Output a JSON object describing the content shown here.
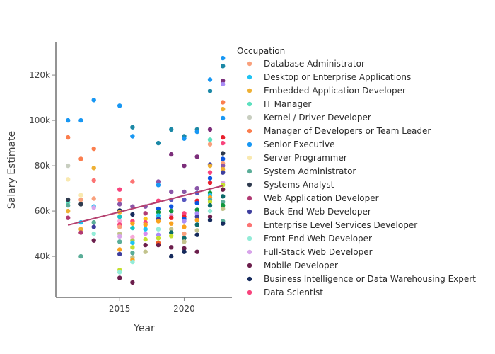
{
  "chart_data": {
    "type": "scatter",
    "title": "",
    "xlabel": "Year",
    "ylabel": "Salary Estimate",
    "xlim": [
      2010.06,
      2023.7
    ],
    "ylim": [
      21900,
      134400
    ],
    "x_ticks": [
      {
        "value": 2015,
        "label": "2015"
      },
      {
        "value": 2020,
        "label": "2020"
      }
    ],
    "y_ticks": [
      {
        "value": 40000,
        "label": "40k"
      },
      {
        "value": 60000,
        "label": "60k"
      },
      {
        "value": 80000,
        "label": "80k"
      },
      {
        "value": 100000,
        "label": "100k"
      },
      {
        "value": 120000,
        "label": "120k"
      }
    ],
    "grid": false,
    "legend": {
      "title": "Occupation",
      "placement": "right",
      "entries": [
        {
          "name": "Database Administrator",
          "color": "#f9a07c"
        },
        {
          "name": "Desktop or Enterprise Applications",
          "color": "#1fc3f3"
        },
        {
          "name": "Embedded Application Developer",
          "color": "#eeb034"
        },
        {
          "name": "IT Manager",
          "color": "#5de0bf"
        },
        {
          "name": "Kernel / Driver Developer",
          "color": "#c8cec0"
        },
        {
          "name": "Manager of Developers or Team Leader",
          "color": "#fb7e4e"
        },
        {
          "name": "Senior Executive",
          "color": "#1897f3"
        },
        {
          "name": "Server Programmer",
          "color": "#f9e9b0"
        },
        {
          "name": "System Administrator",
          "color": "#5aad98"
        },
        {
          "name": "Systems Analyst",
          "color": "#2e3a4e"
        },
        {
          "name": "Web Application Developer",
          "color": "#b13a73"
        },
        {
          "name": "Back-End Web Developer",
          "color": "#3e3e9e"
        },
        {
          "name": "Enterprise Level Services Developer",
          "color": "#fc7373"
        },
        {
          "name": "Front-End Web Developer",
          "color": "#93ecd8"
        },
        {
          "name": "Full-Stack Web Developer",
          "color": "#d8a4ea"
        },
        {
          "name": "Mobile Developer",
          "color": "#6b1e4c"
        },
        {
          "name": "Business Intelligence or Data Warehousing Expert",
          "color": "#152a5c"
        },
        {
          "name": "Data Scientist",
          "color": "#f8437c"
        }
      ]
    },
    "trendline": {
      "color": "#b5406f",
      "x": [
        2011,
        2023
      ],
      "y": [
        53800,
        71200
      ]
    },
    "points": [
      {
        "x": 2011,
        "y": 100000,
        "color": "#1897f3"
      },
      {
        "x": 2011,
        "y": 92500,
        "color": "#fb7e4e"
      },
      {
        "x": 2011,
        "y": 80000,
        "color": "#c8cec0"
      },
      {
        "x": 2011,
        "y": 74000,
        "color": "#f9e9b0"
      },
      {
        "x": 2011,
        "y": 63800,
        "color": "#5de0bf"
      },
      {
        "x": 2011,
        "y": 65000,
        "color": "#2e3a4e"
      },
      {
        "x": 2011,
        "y": 62500,
        "color": "#5aad98"
      },
      {
        "x": 2011,
        "y": 60000,
        "color": "#eeb034"
      },
      {
        "x": 2011,
        "y": 57000,
        "color": "#b13a73"
      },
      {
        "x": 2012,
        "y": 100000,
        "color": "#1897f3"
      },
      {
        "x": 2012,
        "y": 83000,
        "color": "#fb7e4e"
      },
      {
        "x": 2012,
        "y": 67000,
        "color": "#f9e9b0"
      },
      {
        "x": 2012,
        "y": 65000,
        "color": "#f9a07c"
      },
      {
        "x": 2012,
        "y": 63000,
        "color": "#2e3a4e"
      },
      {
        "x": 2012,
        "y": 55000,
        "color": "#1fc3f3"
      },
      {
        "x": 2012,
        "y": 52000,
        "color": "#eeb034"
      },
      {
        "x": 2012,
        "y": 50500,
        "color": "#b13a73"
      },
      {
        "x": 2012,
        "y": 40000,
        "color": "#5aad98"
      },
      {
        "x": 2013,
        "y": 109000,
        "color": "#1897f3"
      },
      {
        "x": 2013,
        "y": 87500,
        "color": "#fb7e4e"
      },
      {
        "x": 2013,
        "y": 79000,
        "color": "#eeb034"
      },
      {
        "x": 2013,
        "y": 73500,
        "color": "#fc7373"
      },
      {
        "x": 2013,
        "y": 65500,
        "color": "#f9a07c"
      },
      {
        "x": 2013,
        "y": 62000,
        "color": "#1fc3f3"
      },
      {
        "x": 2013,
        "y": 61500,
        "color": "#d8a4ea"
      },
      {
        "x": 2013,
        "y": 55000,
        "color": "#5aad98"
      },
      {
        "x": 2013,
        "y": 53000,
        "color": "#3e3e9e"
      },
      {
        "x": 2013,
        "y": 50000,
        "color": "#93ecd8"
      },
      {
        "x": 2013,
        "y": 47000,
        "color": "#6b1e4c"
      },
      {
        "x": 2015,
        "y": 106500,
        "color": "#1897f3"
      },
      {
        "x": 2015,
        "y": 69500,
        "color": "#f8437c"
      },
      {
        "x": 2015,
        "y": 65000,
        "color": "#fc7373"
      },
      {
        "x": 2015,
        "y": 63000,
        "color": "#8a56a8"
      },
      {
        "x": 2015,
        "y": 60200,
        "color": "#152a5c"
      },
      {
        "x": 2015,
        "y": 59500,
        "color": "#eeb034"
      },
      {
        "x": 2015,
        "y": 57500,
        "color": "#17c3c3"
      },
      {
        "x": 2015,
        "y": 55500,
        "color": "#f7a8d8"
      },
      {
        "x": 2015,
        "y": 54000,
        "color": "#f8437c"
      },
      {
        "x": 2015,
        "y": 53000,
        "color": "#f9a07c"
      },
      {
        "x": 2015,
        "y": 50000,
        "color": "#c2c38c"
      },
      {
        "x": 2015,
        "y": 48800,
        "color": "#d8a4ea"
      },
      {
        "x": 2015,
        "y": 46500,
        "color": "#5aad98"
      },
      {
        "x": 2015,
        "y": 43000,
        "color": "#f9a21e"
      },
      {
        "x": 2015,
        "y": 41000,
        "color": "#3e3e9e"
      },
      {
        "x": 2015,
        "y": 34000,
        "color": "#c4e02e"
      },
      {
        "x": 2015,
        "y": 33000,
        "color": "#93ecd8"
      },
      {
        "x": 2015,
        "y": 30500,
        "color": "#6b1e4c"
      },
      {
        "x": 2016,
        "y": 97000,
        "color": "#1b88a6"
      },
      {
        "x": 2016,
        "y": 93000,
        "color": "#1897f3"
      },
      {
        "x": 2016,
        "y": 73000,
        "color": "#fc7373"
      },
      {
        "x": 2016,
        "y": 62000,
        "color": "#8a56a8"
      },
      {
        "x": 2016,
        "y": 58500,
        "color": "#152a5c"
      },
      {
        "x": 2016,
        "y": 55500,
        "color": "#f8437c"
      },
      {
        "x": 2016,
        "y": 54500,
        "color": "#f9a21e"
      },
      {
        "x": 2016,
        "y": 52500,
        "color": "#17c3c3"
      },
      {
        "x": 2016,
        "y": 48500,
        "color": "#f7a8d8"
      },
      {
        "x": 2016,
        "y": 47000,
        "color": "#a8cc4a"
      },
      {
        "x": 2016,
        "y": 46000,
        "color": "#1fc3f3"
      },
      {
        "x": 2016,
        "y": 44000,
        "color": "#c4e02e"
      },
      {
        "x": 2016,
        "y": 41500,
        "color": "#5aad98"
      },
      {
        "x": 2016,
        "y": 39500,
        "color": "#c2c38c"
      },
      {
        "x": 2016,
        "y": 38500,
        "color": "#f9a21e"
      },
      {
        "x": 2016,
        "y": 37500,
        "color": "#93ecd8"
      },
      {
        "x": 2016,
        "y": 28500,
        "color": "#6b1e4c"
      },
      {
        "x": 2017,
        "y": 62000,
        "color": "#8a56a8"
      },
      {
        "x": 2017,
        "y": 59000,
        "color": "#b13a73"
      },
      {
        "x": 2017,
        "y": 56500,
        "color": "#f9c51e"
      },
      {
        "x": 2017,
        "y": 55000,
        "color": "#f8437c"
      },
      {
        "x": 2017,
        "y": 54000,
        "color": "#f9a21e"
      },
      {
        "x": 2017,
        "y": 52000,
        "color": "#1fc3f3"
      },
      {
        "x": 2017,
        "y": 50000,
        "color": "#d88af0"
      },
      {
        "x": 2017,
        "y": 47500,
        "color": "#c4e02e"
      },
      {
        "x": 2017,
        "y": 45000,
        "color": "#6b1e4c"
      },
      {
        "x": 2017,
        "y": 42000,
        "color": "#c2c38c"
      },
      {
        "x": 2018,
        "y": 90000,
        "color": "#1b88a6"
      },
      {
        "x": 2018,
        "y": 73000,
        "color": "#8a56a8"
      },
      {
        "x": 2018,
        "y": 71500,
        "color": "#1897f3"
      },
      {
        "x": 2018,
        "y": 64500,
        "color": "#f8437c"
      },
      {
        "x": 2018,
        "y": 61000,
        "color": "#0b55e0"
      },
      {
        "x": 2018,
        "y": 59500,
        "color": "#10963c"
      },
      {
        "x": 2018,
        "y": 58000,
        "color": "#1fc3f3"
      },
      {
        "x": 2018,
        "y": 56500,
        "color": "#3e3e9e"
      },
      {
        "x": 2018,
        "y": 55500,
        "color": "#f9a21e"
      },
      {
        "x": 2018,
        "y": 52000,
        "color": "#93ecd8"
      },
      {
        "x": 2018,
        "y": 49500,
        "color": "#a98cf6"
      },
      {
        "x": 2018,
        "y": 48000,
        "color": "#c4e02e"
      },
      {
        "x": 2018,
        "y": 46000,
        "color": "#f05a28"
      },
      {
        "x": 2018,
        "y": 45000,
        "color": "#6b1e4c"
      },
      {
        "x": 2019,
        "y": 96000,
        "color": "#1b88a6"
      },
      {
        "x": 2019,
        "y": 85000,
        "color": "#7c2e7a"
      },
      {
        "x": 2019,
        "y": 68500,
        "color": "#8a56a8"
      },
      {
        "x": 2019,
        "y": 65000,
        "color": "#5858c0"
      },
      {
        "x": 2019,
        "y": 62000,
        "color": "#0b55e0"
      },
      {
        "x": 2019,
        "y": 60000,
        "color": "#10963c"
      },
      {
        "x": 2019,
        "y": 58000,
        "color": "#d8a4ea"
      },
      {
        "x": 2019,
        "y": 57000,
        "color": "#e8202d"
      },
      {
        "x": 2019,
        "y": 54500,
        "color": "#f9a21e"
      },
      {
        "x": 2019,
        "y": 52000,
        "color": "#c2c38c"
      },
      {
        "x": 2019,
        "y": 50500,
        "color": "#0c6a6a"
      },
      {
        "x": 2019,
        "y": 49000,
        "color": "#c4e02e"
      },
      {
        "x": 2019,
        "y": 44000,
        "color": "#6b1e4c"
      },
      {
        "x": 2019,
        "y": 40000,
        "color": "#152a5c"
      },
      {
        "x": 2020,
        "y": 93000,
        "color": "#1b88a6"
      },
      {
        "x": 2020,
        "y": 92000,
        "color": "#1897f3"
      },
      {
        "x": 2020,
        "y": 80000,
        "color": "#7c2e7a"
      },
      {
        "x": 2020,
        "y": 68500,
        "color": "#8a56a8"
      },
      {
        "x": 2020,
        "y": 65000,
        "color": "#5858c0"
      },
      {
        "x": 2020,
        "y": 59000,
        "color": "#f8437c"
      },
      {
        "x": 2020,
        "y": 57500,
        "color": "#e8202d"
      },
      {
        "x": 2020,
        "y": 56500,
        "color": "#0b55e0"
      },
      {
        "x": 2020,
        "y": 55500,
        "color": "#a98cf6"
      },
      {
        "x": 2020,
        "y": 53000,
        "color": "#f9a21e"
      },
      {
        "x": 2020,
        "y": 50000,
        "color": "#f9a07c"
      },
      {
        "x": 2020,
        "y": 48000,
        "color": "#0c6a6a"
      },
      {
        "x": 2020,
        "y": 46500,
        "color": "#c2c38c"
      },
      {
        "x": 2020,
        "y": 43500,
        "color": "#6b1e4c"
      },
      {
        "x": 2020,
        "y": 42000,
        "color": "#152a5c"
      },
      {
        "x": 2021,
        "y": 96000,
        "color": "#1b88a6"
      },
      {
        "x": 2021,
        "y": 95000,
        "color": "#1897f3"
      },
      {
        "x": 2021,
        "y": 84000,
        "color": "#7c2e7a"
      },
      {
        "x": 2021,
        "y": 70000,
        "color": "#8a56a8"
      },
      {
        "x": 2021,
        "y": 68000,
        "color": "#5858c0"
      },
      {
        "x": 2021,
        "y": 64500,
        "color": "#e8202d"
      },
      {
        "x": 2021,
        "y": 63500,
        "color": "#0b55e0"
      },
      {
        "x": 2021,
        "y": 60500,
        "color": "#10963c"
      },
      {
        "x": 2021,
        "y": 59000,
        "color": "#a98cf6"
      },
      {
        "x": 2021,
        "y": 57500,
        "color": "#3e3e9e"
      },
      {
        "x": 2021,
        "y": 56000,
        "color": "#f9a21e"
      },
      {
        "x": 2021,
        "y": 54000,
        "color": "#0c6a6a"
      },
      {
        "x": 2021,
        "y": 51500,
        "color": "#c2c38c"
      },
      {
        "x": 2021,
        "y": 49500,
        "color": "#152a5c"
      },
      {
        "x": 2021,
        "y": 42000,
        "color": "#6b1e4c"
      },
      {
        "x": 2022,
        "y": 118000,
        "color": "#1897f3"
      },
      {
        "x": 2022,
        "y": 113000,
        "color": "#1b88a6"
      },
      {
        "x": 2022,
        "y": 96000,
        "color": "#7c2e7a"
      },
      {
        "x": 2022,
        "y": 91500,
        "color": "#5de0bf"
      },
      {
        "x": 2022,
        "y": 89500,
        "color": "#f9a07c"
      },
      {
        "x": 2022,
        "y": 80500,
        "color": "#3e3e9e"
      },
      {
        "x": 2022,
        "y": 80000,
        "color": "#eeb034"
      },
      {
        "x": 2022,
        "y": 77000,
        "color": "#f8437c"
      },
      {
        "x": 2022,
        "y": 74500,
        "color": "#0b55e0"
      },
      {
        "x": 2022,
        "y": 72500,
        "color": "#e8202d"
      },
      {
        "x": 2022,
        "y": 68000,
        "color": "#10963c"
      },
      {
        "x": 2022,
        "y": 67000,
        "color": "#1fc3f3"
      },
      {
        "x": 2022,
        "y": 66000,
        "color": "#f9a21e"
      },
      {
        "x": 2022,
        "y": 65000,
        "color": "#5aad98"
      },
      {
        "x": 2022,
        "y": 64000,
        "color": "#c4e02e"
      },
      {
        "x": 2022,
        "y": 62500,
        "color": "#0c6a6a"
      },
      {
        "x": 2022,
        "y": 60000,
        "color": "#93ecd8"
      },
      {
        "x": 2022,
        "y": 57500,
        "color": "#6b1e4c"
      },
      {
        "x": 2022,
        "y": 56000,
        "color": "#152a5c"
      },
      {
        "x": 2023,
        "y": 127500,
        "color": "#1897f3"
      },
      {
        "x": 2023,
        "y": 124000,
        "color": "#1b88a6"
      },
      {
        "x": 2023,
        "y": 117500,
        "color": "#7c2e7a"
      },
      {
        "x": 2023,
        "y": 116000,
        "color": "#a98cf6"
      },
      {
        "x": 2023,
        "y": 108000,
        "color": "#fb7e4e"
      },
      {
        "x": 2023,
        "y": 105000,
        "color": "#eeb034"
      },
      {
        "x": 2023,
        "y": 101000,
        "color": "#1897f3"
      },
      {
        "x": 2023,
        "y": 92500,
        "color": "#e8202d"
      },
      {
        "x": 2023,
        "y": 90000,
        "color": "#f8437c"
      },
      {
        "x": 2023,
        "y": 85500,
        "color": "#2e3a4e"
      },
      {
        "x": 2023,
        "y": 83000,
        "color": "#0b55e0"
      },
      {
        "x": 2023,
        "y": 81000,
        "color": "#f9a07c"
      },
      {
        "x": 2023,
        "y": 80000,
        "color": "#8a56a8"
      },
      {
        "x": 2023,
        "y": 78500,
        "color": "#eeb034"
      },
      {
        "x": 2023,
        "y": 77000,
        "color": "#3e3e9e"
      },
      {
        "x": 2023,
        "y": 72500,
        "color": "#d8a4ea"
      },
      {
        "x": 2023,
        "y": 71500,
        "color": "#c4e02e"
      },
      {
        "x": 2023,
        "y": 69500,
        "color": "#6b1e4c"
      },
      {
        "x": 2023,
        "y": 66500,
        "color": "#0c6a6a"
      },
      {
        "x": 2023,
        "y": 64000,
        "color": "#5aad98"
      },
      {
        "x": 2023,
        "y": 62500,
        "color": "#10963c"
      },
      {
        "x": 2023,
        "y": 61000,
        "color": "#c2c38c"
      },
      {
        "x": 2023,
        "y": 55500,
        "color": "#5aad98"
      },
      {
        "x": 2023,
        "y": 54500,
        "color": "#152a5c"
      }
    ]
  }
}
